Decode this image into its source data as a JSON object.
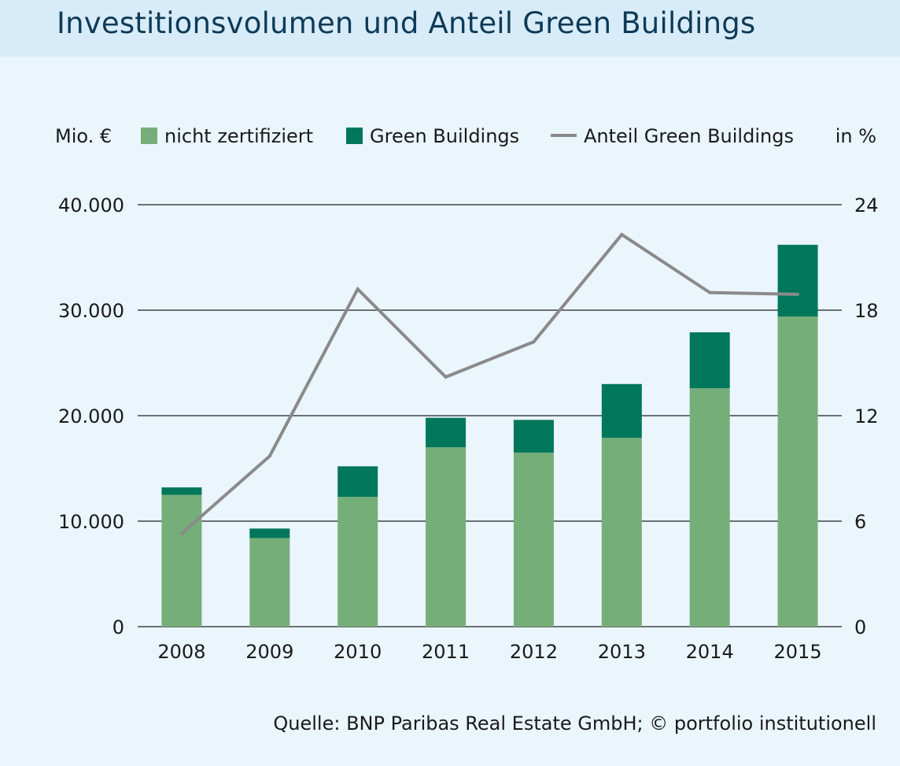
{
  "title": "Investitionsvolumen und Anteil Green Buildings",
  "source": "Quelle: BNP Paribas Real Estate GmbH; © portfolio institutionell",
  "chart_data": {
    "type": "bar",
    "stacked": true,
    "left_unit": "Mio. €",
    "right_unit": "in %",
    "categories": [
      "2008",
      "2009",
      "2010",
      "2011",
      "2012",
      "2013",
      "2014",
      "2015"
    ],
    "series": [
      {
        "name": "nicht zertifiziert",
        "type": "bar",
        "axis": "left",
        "color": "#76ae79",
        "values": [
          12500,
          8400,
          12300,
          17000,
          16500,
          17900,
          22600,
          29400
        ]
      },
      {
        "name": "Green Buildings",
        "type": "bar",
        "axis": "left",
        "color": "#00775a",
        "values": [
          700,
          900,
          2900,
          2800,
          3100,
          5100,
          5300,
          6800
        ]
      },
      {
        "name": "Anteil Green Buildings",
        "type": "line",
        "axis": "right",
        "color": "#8a8a8a",
        "values": [
          5.3,
          9.7,
          19.2,
          14.2,
          16.2,
          22.3,
          19.0,
          18.9
        ]
      }
    ],
    "ylim": [
      0,
      40000
    ],
    "y_ticks": [
      "0",
      "10.000",
      "20.000",
      "30.000",
      "40.000"
    ],
    "y_tick_values": [
      0,
      10000,
      20000,
      30000,
      40000
    ],
    "y2lim": [
      0,
      24
    ],
    "y2_ticks": [
      "0",
      "6",
      "12",
      "18",
      "24"
    ],
    "y2_tick_values": [
      0,
      6,
      12,
      18,
      24
    ],
    "grid": true,
    "legend_position": "top"
  }
}
